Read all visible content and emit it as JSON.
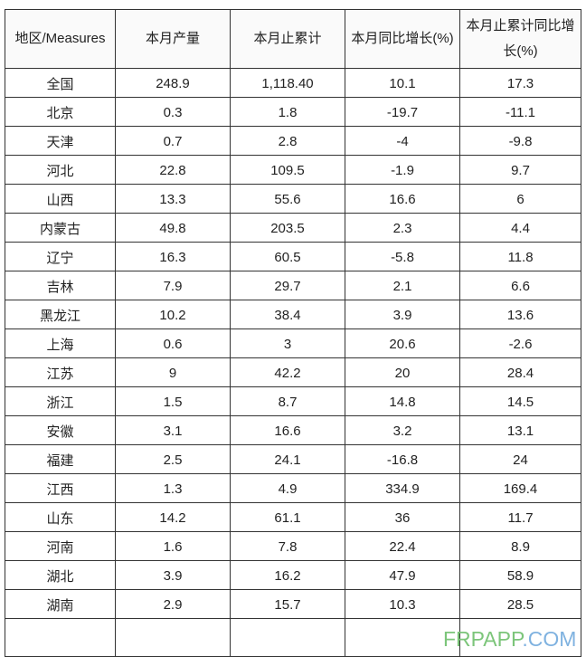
{
  "headers": [
    "地区/Measures",
    "本月产量",
    "本月止累计",
    "本月同比增长(%)",
    "本月止累计同比增长(%)"
  ],
  "rows": [
    [
      "全国",
      "248.9",
      "1,118.40",
      "10.1",
      "17.3"
    ],
    [
      "北京",
      "0.3",
      "1.8",
      "-19.7",
      "-11.1"
    ],
    [
      "天津",
      "0.7",
      "2.8",
      "-4",
      "-9.8"
    ],
    [
      "河北",
      "22.8",
      "109.5",
      "-1.9",
      "9.7"
    ],
    [
      "山西",
      "13.3",
      "55.6",
      "16.6",
      "6"
    ],
    [
      "内蒙古",
      "49.8",
      "203.5",
      "2.3",
      "4.4"
    ],
    [
      "辽宁",
      "16.3",
      "60.5",
      "-5.8",
      "11.8"
    ],
    [
      "吉林",
      "7.9",
      "29.7",
      "2.1",
      "6.6"
    ],
    [
      "黑龙江",
      "10.2",
      "38.4",
      "3.9",
      "13.6"
    ],
    [
      "上海",
      "0.6",
      "3",
      "20.6",
      "-2.6"
    ],
    [
      "江苏",
      "9",
      "42.2",
      "20",
      "28.4"
    ],
    [
      "浙江",
      "1.5",
      "8.7",
      "14.8",
      "14.5"
    ],
    [
      "安徽",
      "3.1",
      "16.6",
      "3.2",
      "13.1"
    ],
    [
      "福建",
      "2.5",
      "24.1",
      "-16.8",
      "24"
    ],
    [
      "江西",
      "1.3",
      "4.9",
      "334.9",
      "169.4"
    ],
    [
      "山东",
      "14.2",
      "61.1",
      "36",
      "11.7"
    ],
    [
      "河南",
      "1.6",
      "7.8",
      "22.4",
      "8.9"
    ],
    [
      "湖北",
      "3.9",
      "16.2",
      "47.9",
      "58.9"
    ],
    [
      "湖南",
      "2.9",
      "15.7",
      "10.3",
      "28.5"
    ]
  ],
  "watermark": {
    "part1": "FRPAPP",
    "part2": ".COM",
    "color1": "#7cc57a",
    "color2": "#7fb2e0"
  }
}
